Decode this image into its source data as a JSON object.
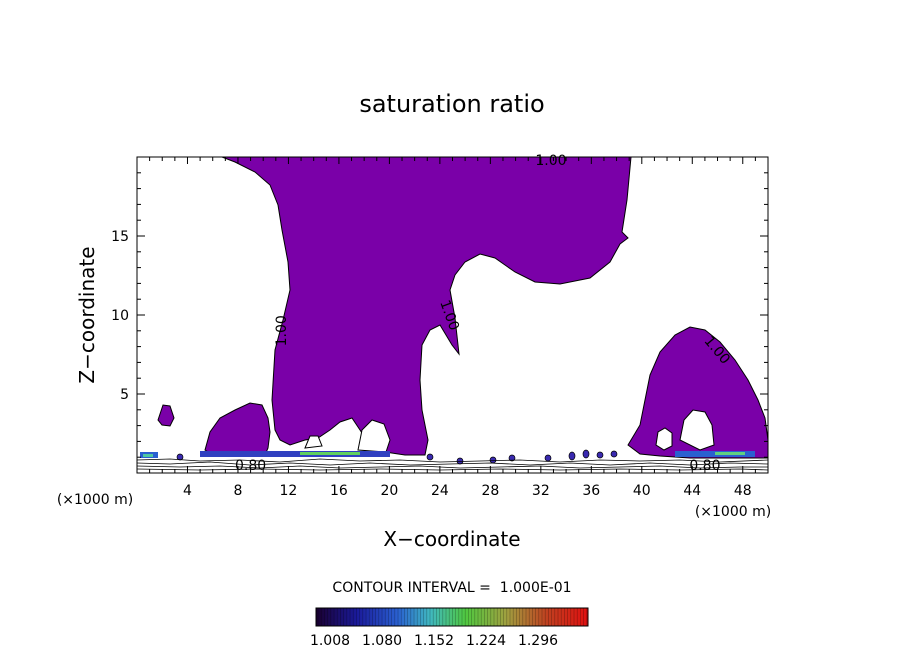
{
  "chart_data": {
    "type": "contour",
    "title": "saturation ratio",
    "xlabel": "X−coordinate",
    "ylabel": "Z−coordinate",
    "x_unit_left": "(×1000 m)",
    "x_unit_right": "(×1000 m)",
    "xlim": [
      0,
      50
    ],
    "ylim": [
      0,
      20
    ],
    "x_ticks": [
      4,
      8,
      12,
      16,
      20,
      24,
      28,
      32,
      36,
      40,
      44,
      48
    ],
    "y_ticks": [
      5,
      10,
      15
    ],
    "contour_labels": [
      {
        "text": "1.00",
        "x": 32.8,
        "z": 19.8,
        "angle": 0
      },
      {
        "text": "1.00",
        "x": 11.4,
        "z": 9.0,
        "angle": -90
      },
      {
        "text": "1.00",
        "x": 24.8,
        "z": 10.0,
        "angle": 70
      },
      {
        "text": "1.00",
        "x": 46.0,
        "z": 7.8,
        "angle": 50
      },
      {
        "text": "0.80",
        "x": 9.0,
        "z": 0.5,
        "angle": 0
      },
      {
        "text": "0.80",
        "x": 45.0,
        "z": 0.5,
        "angle": 0
      }
    ],
    "contour_interval_label": "CONTOUR INTERVAL =  1.000E-01",
    "colorbar": {
      "tick_labels": [
        "1.008",
        "1.080",
        "1.152",
        "1.224",
        "1.296"
      ],
      "range": [
        1.008,
        1.3
      ]
    },
    "fill_color": "#7a00a8",
    "grid": false,
    "legend": "colorbar-bottom"
  }
}
